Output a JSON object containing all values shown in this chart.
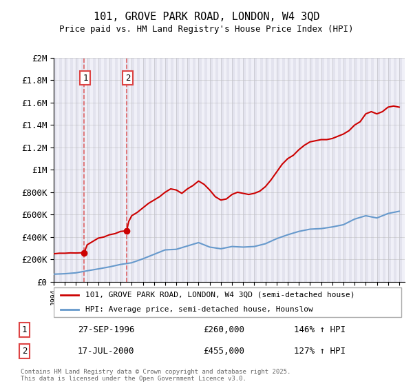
{
  "title": "101, GROVE PARK ROAD, LONDON, W4 3QD",
  "subtitle": "Price paid vs. HM Land Registry's House Price Index (HPI)",
  "ylabel_ticks": [
    "£0",
    "£200K",
    "£400K",
    "£600K",
    "£800K",
    "£1M",
    "£1.2M",
    "£1.4M",
    "£1.6M",
    "£1.8M",
    "£2M"
  ],
  "ytick_values": [
    0,
    200000,
    400000,
    600000,
    800000,
    1000000,
    1200000,
    1400000,
    1600000,
    1800000,
    2000000
  ],
  "ylim": [
    0,
    2000000
  ],
  "xlim_start": 1994.0,
  "xlim_end": 2025.5,
  "sale1_x": 1996.74,
  "sale1_y": 260000,
  "sale2_x": 2000.54,
  "sale2_y": 455000,
  "sale1_label": "1",
  "sale2_label": "2",
  "sale1_date": "27-SEP-1996",
  "sale1_price": "£260,000",
  "sale1_hpi": "146% ↑ HPI",
  "sale2_date": "17-JUL-2000",
  "sale2_price": "£455,000",
  "sale2_hpi": "127% ↑ HPI",
  "line_color_red": "#cc0000",
  "line_color_blue": "#6699cc",
  "background_hatch_color": "#e8e8f0",
  "grid_color": "#cccccc",
  "vline_color": "#dd4444",
  "legend1_label": "101, GROVE PARK ROAD, LONDON, W4 3QD (semi-detached house)",
  "legend2_label": "HPI: Average price, semi-detached house, Hounslow",
  "footer": "Contains HM Land Registry data © Crown copyright and database right 2025.\nThis data is licensed under the Open Government Licence v3.0.",
  "hpi_years": [
    1994,
    1995,
    1996,
    1997,
    1998,
    1999,
    2000,
    2001,
    2002,
    2003,
    2004,
    2005,
    2006,
    2007,
    2008,
    2009,
    2010,
    2011,
    2012,
    2013,
    2014,
    2015,
    2016,
    2017,
    2018,
    2019,
    2020,
    2021,
    2022,
    2023,
    2024,
    2025
  ],
  "hpi_values": [
    68000,
    72000,
    80000,
    98000,
    115000,
    133000,
    155000,
    170000,
    205000,
    245000,
    285000,
    290000,
    320000,
    350000,
    310000,
    295000,
    315000,
    310000,
    315000,
    340000,
    385000,
    420000,
    450000,
    470000,
    475000,
    490000,
    510000,
    560000,
    590000,
    570000,
    610000,
    630000
  ],
  "price_years": [
    1994.0,
    1994.5,
    1995.0,
    1995.5,
    1996.0,
    1996.5,
    1996.74,
    1997.0,
    1997.5,
    1998.0,
    1998.5,
    1999.0,
    1999.5,
    2000.0,
    2000.54,
    2000.74,
    2001.0,
    2001.5,
    2002.0,
    2002.5,
    2003.0,
    2003.5,
    2004.0,
    2004.5,
    2005.0,
    2005.5,
    2006.0,
    2006.5,
    2007.0,
    2007.5,
    2008.0,
    2008.5,
    2009.0,
    2009.5,
    2010.0,
    2010.5,
    2011.0,
    2011.5,
    2012.0,
    2012.5,
    2013.0,
    2013.5,
    2014.0,
    2014.5,
    2015.0,
    2015.5,
    2016.0,
    2016.5,
    2017.0,
    2017.5,
    2018.0,
    2018.5,
    2019.0,
    2019.5,
    2020.0,
    2020.5,
    2021.0,
    2021.5,
    2022.0,
    2022.5,
    2023.0,
    2023.5,
    2024.0,
    2024.5,
    2025.0
  ],
  "price_values": [
    250000,
    255000,
    255000,
    258000,
    257000,
    259000,
    260000,
    330000,
    360000,
    390000,
    400000,
    420000,
    430000,
    450000,
    455000,
    540000,
    590000,
    620000,
    660000,
    700000,
    730000,
    760000,
    800000,
    830000,
    820000,
    790000,
    830000,
    860000,
    900000,
    870000,
    820000,
    760000,
    730000,
    740000,
    780000,
    800000,
    790000,
    780000,
    790000,
    810000,
    850000,
    910000,
    980000,
    1050000,
    1100000,
    1130000,
    1180000,
    1220000,
    1250000,
    1260000,
    1270000,
    1270000,
    1280000,
    1300000,
    1320000,
    1350000,
    1400000,
    1430000,
    1500000,
    1520000,
    1500000,
    1520000,
    1560000,
    1570000,
    1560000
  ]
}
